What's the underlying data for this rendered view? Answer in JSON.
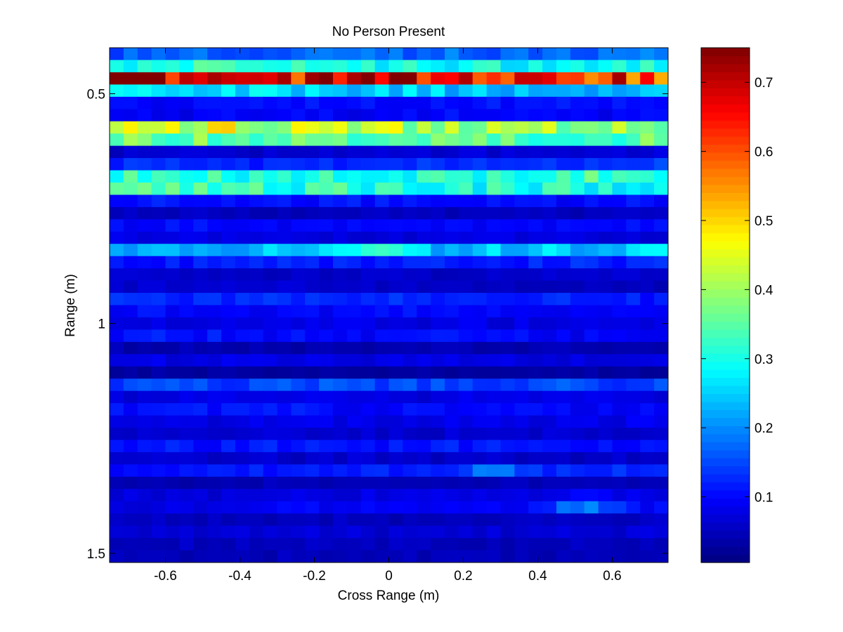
{
  "chart_data": {
    "type": "heatmap",
    "title": "No Person Present",
    "xlabel": "Cross Range (m)",
    "ylabel": "Range (m)",
    "xlim": [
      -0.75,
      0.75
    ],
    "ylim": [
      0.4,
      1.52
    ],
    "y_reversed": true,
    "xticks": [
      -0.6,
      -0.4,
      -0.2,
      0,
      0.2,
      0.4,
      0.6
    ],
    "xtick_labels": [
      "-0.6",
      "-0.4",
      "-0.2",
      "0",
      "0.2",
      "0.4",
      "0.6"
    ],
    "yticks": [
      0.5,
      1,
      1.5
    ],
    "ytick_labels": [
      "0.5",
      "1",
      "1.5"
    ],
    "colorbar": {
      "colormap": "jet",
      "clim": [
        0.005,
        0.75
      ],
      "ticks": [
        0.1,
        0.2,
        0.3,
        0.4,
        0.5,
        0.6,
        0.7
      ],
      "tick_labels": [
        "0.1",
        "0.2",
        "0.3",
        "0.4",
        "0.5",
        "0.6",
        "0.7"
      ]
    },
    "grid": false,
    "columns": 40,
    "x_range": [
      -0.75,
      0.75
    ],
    "y_range": [
      0.4,
      1.52
    ],
    "rows": [
      {
        "level": 0.17,
        "left": 0.17,
        "right": 0.18
      },
      {
        "level": 0.3,
        "left": 0.33,
        "right": 0.3
      },
      {
        "level": 0.68,
        "left": 0.72,
        "right": 0.58
      },
      {
        "level": 0.27,
        "left": 0.27,
        "right": 0.17
      },
      {
        "level": 0.1,
        "left": 0.1,
        "right": 0.12
      },
      {
        "level": 0.1,
        "left": 0.08,
        "right": 0.1
      },
      {
        "level": 0.44,
        "left": 0.38,
        "right": 0.38,
        "bump": 0.06,
        "bump_x": -0.45
      },
      {
        "level": 0.38,
        "left": 0.33,
        "right": 0.33
      },
      {
        "level": 0.07,
        "left": 0.05,
        "right": 0.07
      },
      {
        "level": 0.13,
        "left": 0.12,
        "right": 0.15
      },
      {
        "level": 0.3,
        "left": 0.37,
        "right": 0.25,
        "bump": 0.05,
        "bump_x": 0.55
      },
      {
        "level": 0.3,
        "left": 0.37,
        "right": 0.28
      },
      {
        "level": 0.1,
        "left": 0.12,
        "right": 0.1
      },
      {
        "level": 0.05,
        "left": 0.05,
        "right": 0.06
      },
      {
        "level": 0.1,
        "left": 0.1,
        "right": 0.09
      },
      {
        "level": 0.08,
        "left": 0.07,
        "right": 0.07
      },
      {
        "level": 0.25,
        "left": 0.2,
        "right": 0.25,
        "bump": 0.08,
        "bump_x": -0.05
      },
      {
        "level": 0.12,
        "left": 0.11,
        "right": 0.13
      },
      {
        "level": 0.06,
        "left": 0.06,
        "right": 0.06
      },
      {
        "level": 0.06,
        "left": 0.07,
        "right": 0.05
      },
      {
        "level": 0.12,
        "left": 0.13,
        "right": 0.12
      },
      {
        "level": 0.1,
        "left": 0.1,
        "right": 0.09
      },
      {
        "level": 0.08,
        "left": 0.08,
        "right": 0.08
      },
      {
        "level": 0.1,
        "left": 0.12,
        "right": 0.09
      },
      {
        "level": 0.04,
        "left": 0.04,
        "right": 0.04
      },
      {
        "level": 0.08,
        "left": 0.08,
        "right": 0.07
      },
      {
        "level": 0.03,
        "left": 0.03,
        "right": 0.03
      },
      {
        "level": 0.15,
        "left": 0.15,
        "right": 0.14
      },
      {
        "level": 0.08,
        "left": 0.08,
        "right": 0.08
      },
      {
        "level": 0.1,
        "left": 0.13,
        "right": 0.09
      },
      {
        "level": 0.08,
        "left": 0.08,
        "right": 0.09
      },
      {
        "level": 0.06,
        "left": 0.06,
        "right": 0.07
      },
      {
        "level": 0.11,
        "left": 0.12,
        "right": 0.1
      },
      {
        "level": 0.06,
        "left": 0.07,
        "right": 0.06
      },
      {
        "level": 0.12,
        "left": 0.09,
        "right": 0.14,
        "bump": 0.06,
        "bump_x": 0.3
      },
      {
        "level": 0.05,
        "left": 0.04,
        "right": 0.05
      },
      {
        "level": 0.08,
        "left": 0.06,
        "right": 0.1
      },
      {
        "level": 0.09,
        "left": 0.08,
        "right": 0.1,
        "bump": 0.1,
        "bump_x": 0.52
      },
      {
        "level": 0.05,
        "left": 0.05,
        "right": 0.06
      },
      {
        "level": 0.07,
        "left": 0.06,
        "right": 0.07
      },
      {
        "level": 0.05,
        "left": 0.05,
        "right": 0.05
      },
      {
        "level": 0.05,
        "left": 0.04,
        "right": 0.05
      }
    ]
  }
}
